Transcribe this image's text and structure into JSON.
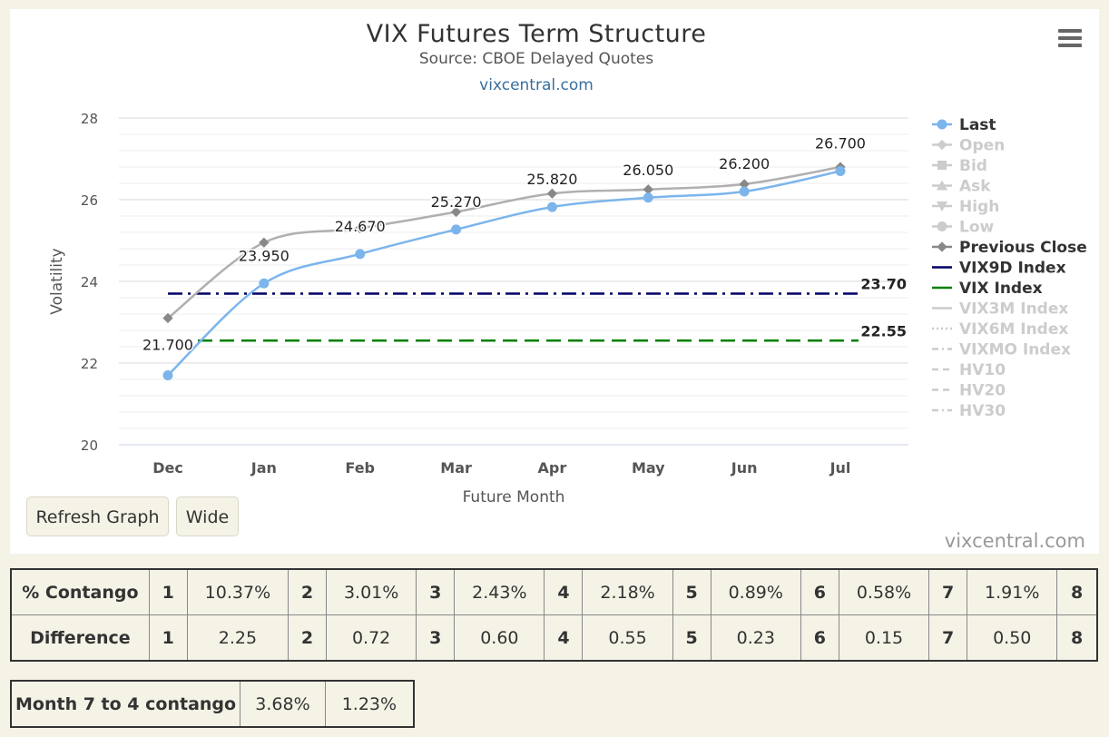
{
  "chart": {
    "title": "VIX Futures Term Structure",
    "subtitle": "Source: CBOE Delayed Quotes",
    "link": "vixcentral.com",
    "credits": "vixcentral.com",
    "xlabel": "Future Month",
    "ylabel": "Volatility"
  },
  "chart_data": {
    "type": "line",
    "categories": [
      "Dec",
      "Jan",
      "Feb",
      "Mar",
      "Apr",
      "May",
      "Jun",
      "Jul"
    ],
    "ylim": [
      20,
      28
    ],
    "yticks": [
      20,
      22,
      24,
      26,
      28
    ],
    "grid": true,
    "legend_position": "right",
    "series": [
      {
        "name": "Last",
        "values": [
          21.7,
          23.95,
          24.67,
          25.27,
          25.82,
          26.05,
          26.2,
          26.7
        ],
        "labels": [
          "21.700",
          "23.950",
          "24.670",
          "25.270",
          "25.820",
          "26.050",
          "26.200",
          "26.700"
        ],
        "color": "#7cb5ec"
      },
      {
        "name": "Previous Close",
        "values": [
          23.1,
          24.95,
          25.3,
          25.7,
          26.15,
          26.25,
          26.38,
          26.8
        ],
        "color": "#aaaaaa"
      }
    ],
    "reference_lines": [
      {
        "name": "VIX9D Index",
        "value": 23.7,
        "label": "23.70",
        "color": "#000066",
        "style": "dashdot"
      },
      {
        "name": "VIX Index",
        "value": 22.55,
        "label": "22.55",
        "color": "#008000",
        "style": "dash"
      }
    ],
    "legend": [
      {
        "name": "Last",
        "active": true,
        "symbol": "circle",
        "color": "#7cb5ec"
      },
      {
        "name": "Open",
        "active": false,
        "symbol": "diamond"
      },
      {
        "name": "Bid",
        "active": false,
        "symbol": "square"
      },
      {
        "name": "Ask",
        "active": false,
        "symbol": "triangle"
      },
      {
        "name": "High",
        "active": false,
        "symbol": "triangle-down"
      },
      {
        "name": "Low",
        "active": false,
        "symbol": "circle"
      },
      {
        "name": "Previous Close",
        "active": true,
        "symbol": "diamond",
        "color": "#888888"
      },
      {
        "name": "VIX9D Index",
        "active": true,
        "symbol": "line",
        "color": "#000066"
      },
      {
        "name": "VIX Index",
        "active": true,
        "symbol": "line",
        "color": "#008000"
      },
      {
        "name": "VIX3M Index",
        "active": false,
        "symbol": "line"
      },
      {
        "name": "VIX6M Index",
        "active": false,
        "symbol": "dotline"
      },
      {
        "name": "VIXMO Index",
        "active": false,
        "symbol": "dashdotline"
      },
      {
        "name": "HV10",
        "active": false,
        "symbol": "dashline"
      },
      {
        "name": "HV20",
        "active": false,
        "symbol": "dashline"
      },
      {
        "name": "HV30",
        "active": false,
        "symbol": "dashdotline"
      }
    ]
  },
  "buttons": {
    "refresh": "Refresh Graph",
    "wide": "Wide"
  },
  "contango_table": {
    "rows": [
      {
        "label": "% Contango",
        "cells": [
          [
            "1",
            "10.37%"
          ],
          [
            "2",
            "3.01%"
          ],
          [
            "3",
            "2.43%"
          ],
          [
            "4",
            "2.18%"
          ],
          [
            "5",
            "0.89%"
          ],
          [
            "6",
            "0.58%"
          ],
          [
            "7",
            "1.91%"
          ]
        ],
        "last": "8"
      },
      {
        "label": "Difference",
        "cells": [
          [
            "1",
            "2.25"
          ],
          [
            "2",
            "0.72"
          ],
          [
            "3",
            "0.60"
          ],
          [
            "4",
            "0.55"
          ],
          [
            "5",
            "0.23"
          ],
          [
            "6",
            "0.15"
          ],
          [
            "7",
            "0.50"
          ]
        ],
        "last": "8"
      }
    ]
  },
  "summary_table": {
    "label": "Month 7 to 4 contango",
    "value1": "3.68%",
    "value2": "1.23%"
  }
}
